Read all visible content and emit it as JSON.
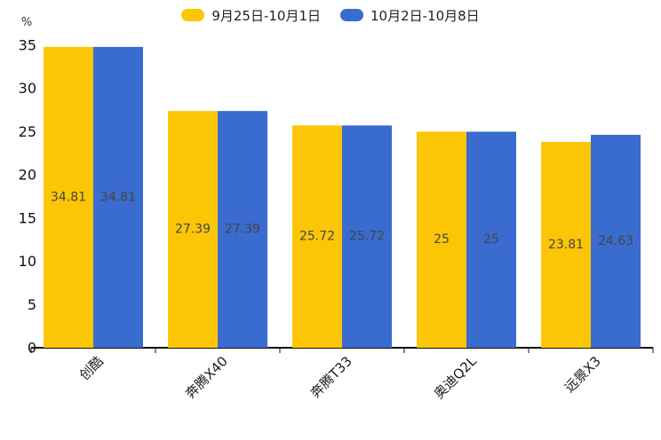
{
  "chart_data": {
    "type": "bar",
    "title": "",
    "xlabel": "",
    "ylabel": "%",
    "categories": [
      "创酷",
      "奔腾X40",
      "奔腾T33",
      "奥迪Q2L",
      "远景X3"
    ],
    "series": [
      {
        "name": "9月25日-10月1日",
        "color": "#FCC606",
        "values": [
          34.81,
          27.39,
          25.72,
          25,
          23.81
        ]
      },
      {
        "name": "10月2日-10月8日",
        "color": "#3A6BCE",
        "values": [
          34.81,
          27.39,
          25.72,
          25,
          24.63
        ]
      }
    ],
    "ylim": [
      0,
      35
    ],
    "yticks": [
      0,
      5,
      10,
      15,
      20,
      25,
      30,
      35
    ],
    "grid": false,
    "legend_position": "top",
    "bar_labels_inside": true,
    "category_label_rotation_deg": -45,
    "colors": {
      "background": "#ffffff",
      "axis": "#111111",
      "bar_label_text": "#444444",
      "tick_label_text": "#111111"
    }
  }
}
